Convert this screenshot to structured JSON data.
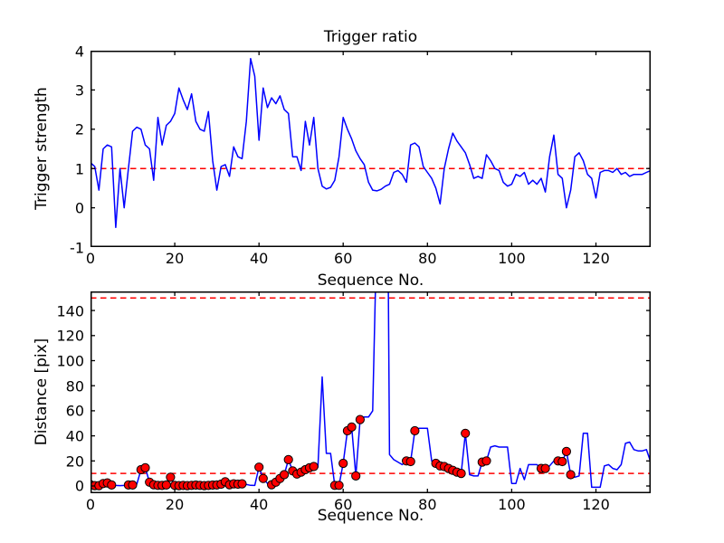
{
  "figure": {
    "background": "#ffffff",
    "frame_color": "#000000",
    "text_color": "#000000"
  },
  "chart_data": [
    {
      "type": "line",
      "name": "trigger-ratio-chart",
      "title": "Trigger ratio",
      "xlabel": "Sequence No.",
      "ylabel": "Trigger strength",
      "xlim": [
        0,
        133
      ],
      "ylim": [
        -1,
        4
      ],
      "xticks": [
        0,
        20,
        40,
        60,
        80,
        100,
        120
      ],
      "yticks": [
        -1,
        0,
        1,
        2,
        3,
        4
      ],
      "grid": false,
      "legend": "none",
      "line_color": "#0000ff",
      "line_name": "trigger-strength-line",
      "threshold_color": "#ff0000",
      "threshold_style": "dashed",
      "threshold_lines": [
        1
      ],
      "x_start": 0,
      "x_step": 1,
      "values": [
        1.15,
        1.05,
        0.45,
        1.5,
        1.6,
        1.55,
        -0.5,
        1.0,
        0.0,
        1.0,
        1.95,
        2.05,
        2.0,
        1.6,
        1.5,
        0.7,
        2.3,
        1.6,
        2.1,
        2.2,
        2.4,
        3.05,
        2.75,
        2.5,
        2.9,
        2.2,
        2.0,
        1.95,
        2.45,
        1.2,
        0.45,
        1.05,
        1.1,
        0.8,
        1.55,
        1.3,
        1.25,
        2.2,
        3.8,
        3.35,
        1.72,
        3.05,
        2.55,
        2.8,
        2.65,
        2.85,
        2.5,
        2.4,
        1.3,
        1.3,
        0.95,
        2.2,
        1.6,
        2.3,
        1.0,
        0.55,
        0.48,
        0.52,
        0.7,
        1.3,
        2.3,
        2.0,
        1.75,
        1.45,
        1.25,
        1.1,
        0.65,
        0.45,
        0.43,
        0.47,
        0.55,
        0.6,
        0.9,
        0.95,
        0.85,
        0.65,
        1.6,
        1.65,
        1.55,
        1.05,
        0.9,
        0.75,
        0.5,
        0.1,
        1.0,
        1.5,
        1.9,
        1.7,
        1.55,
        1.4,
        1.1,
        0.75,
        0.8,
        0.75,
        1.35,
        1.2,
        1.0,
        0.95,
        0.65,
        0.55,
        0.6,
        0.85,
        0.8,
        0.9,
        0.6,
        0.7,
        0.6,
        0.75,
        0.4,
        1.3,
        1.85,
        0.85,
        0.75,
        0.0,
        0.45,
        1.3,
        1.4,
        1.2,
        0.85,
        0.75,
        0.25,
        0.9,
        0.95,
        0.95,
        0.9,
        1.0,
        0.85,
        0.9,
        0.8,
        0.85,
        0.85,
        0.85,
        0.9,
        0.95
      ]
    },
    {
      "type": "line",
      "name": "distance-chart",
      "title": "",
      "xlabel": "Sequence No.",
      "ylabel": "Distance [pix]",
      "xlim": [
        0,
        133
      ],
      "ylim": [
        -5.8,
        155.2
      ],
      "xticks": [
        0,
        20,
        40,
        60,
        80,
        100,
        120
      ],
      "yticks": [
        0,
        20,
        40,
        60,
        80,
        100,
        120,
        140
      ],
      "grid": false,
      "legend": "none",
      "line_color": "#0000ff",
      "line_name": "distance-line",
      "threshold_color": "#ff0000",
      "threshold_style": "dashed",
      "threshold_lines": [
        150,
        10
      ],
      "x_start": 0,
      "x_step": 1,
      "values": [
        1,
        0.3,
        0.3,
        1.9,
        2.4,
        0.8,
        0.4,
        0.3,
        0.4,
        0.8,
        0.8,
        1.5,
        13,
        14.5,
        3,
        1,
        0.5,
        0.4,
        0.8,
        7,
        0.5,
        0.3,
        0.4,
        0.3,
        0.5,
        0.7,
        0.5,
        0.3,
        0.4,
        0.7,
        0.8,
        1.4,
        3.3,
        1.0,
        1.7,
        1.4,
        1.7,
        1.2,
        0.5,
        0.4,
        15,
        6,
        2,
        1,
        3,
        6,
        9,
        21,
        12,
        9.5,
        11,
        13,
        14.5,
        15.5,
        15,
        87,
        26,
        26,
        0.5,
        0.5,
        18,
        44,
        47,
        8,
        53,
        55,
        55,
        60,
        210,
        500,
        500,
        25,
        21,
        19,
        17,
        20,
        19.5,
        44,
        46,
        46,
        46,
        20,
        18,
        16,
        15.5,
        14,
        12.5,
        11,
        10,
        42,
        9,
        8,
        8,
        19,
        20,
        31,
        32,
        31,
        31,
        31,
        2,
        2,
        14,
        5,
        17,
        17,
        17,
        14,
        14,
        16,
        20,
        20,
        19.5,
        27.5,
        9,
        7,
        8,
        42,
        42,
        -1,
        -1,
        -1,
        16,
        17,
        14,
        13,
        17,
        34,
        35,
        29,
        28,
        28,
        29,
        19
      ],
      "markers": {
        "shape": "circle",
        "fill": "#ff0000",
        "edge": "#000000",
        "x": [
          0,
          1,
          2,
          3,
          4,
          5,
          9,
          10,
          12,
          13,
          14,
          15,
          16,
          17,
          18,
          19,
          20,
          21,
          22,
          23,
          24,
          25,
          26,
          27,
          28,
          29,
          30,
          31,
          32,
          33,
          34,
          35,
          36,
          40,
          41,
          43,
          44,
          45,
          46,
          47,
          48,
          49,
          50,
          51,
          52,
          53,
          58,
          59,
          60,
          61,
          62,
          63,
          64,
          75,
          76,
          77,
          82,
          83,
          84,
          85,
          86,
          87,
          88,
          89,
          93,
          94,
          107,
          108,
          111,
          112,
          113,
          114
        ]
      }
    }
  ]
}
